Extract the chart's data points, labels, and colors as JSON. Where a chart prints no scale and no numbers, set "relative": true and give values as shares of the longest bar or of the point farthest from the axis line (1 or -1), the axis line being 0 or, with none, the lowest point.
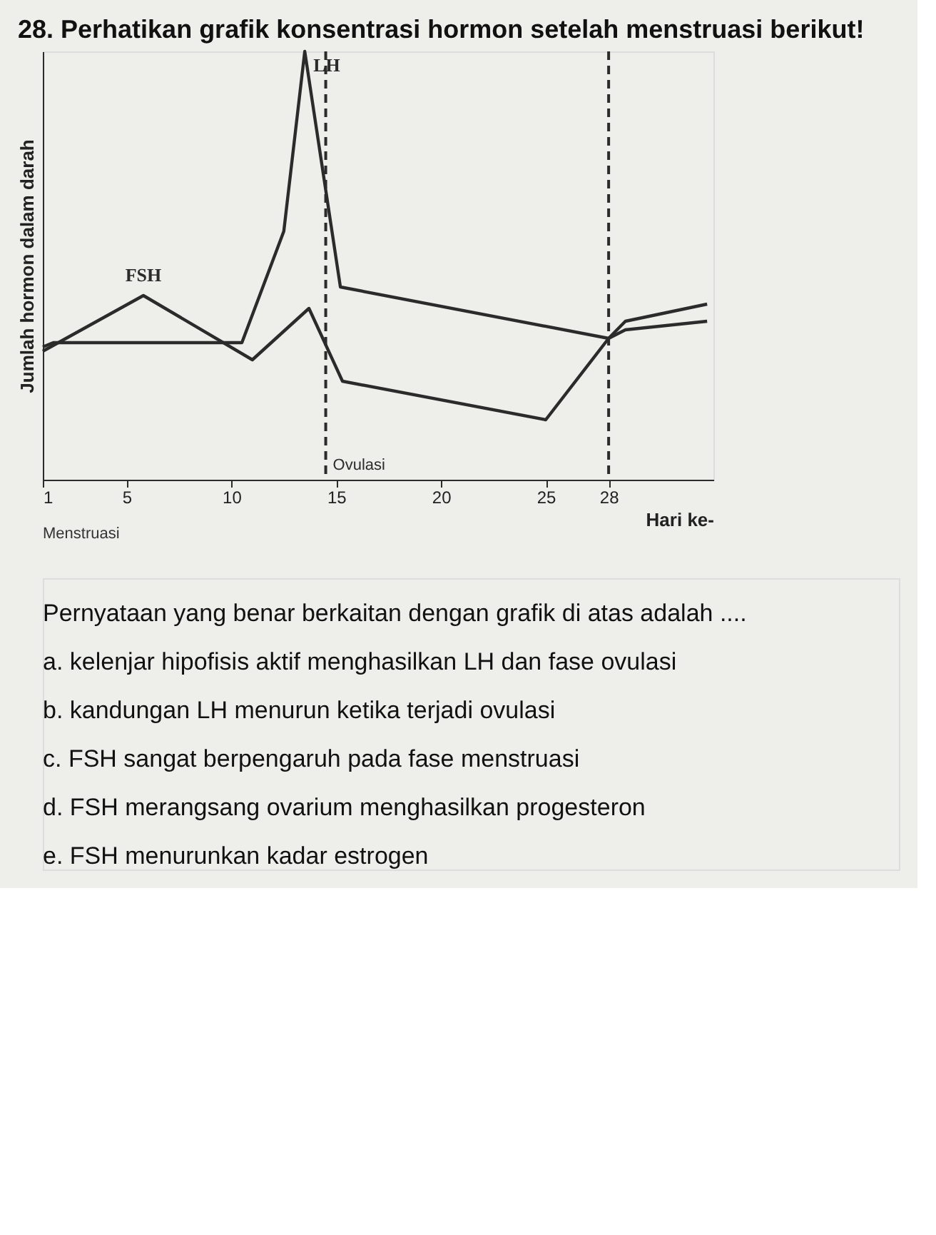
{
  "chart_data": {
    "type": "line",
    "title": "28. Perhatikan grafik konsentrasi hormon setelah menstruasi berikut!",
    "subtitle": "Pernyataan yang benar berkaitan dengan grafik di atas adalah ....",
    "xlabel": "Hari ke-",
    "ylabel": "Jumlah hormon dalam darah",
    "relative": true,
    "xlim": [
      1,
      33
    ],
    "xticks": [
      1,
      5,
      10,
      15,
      20,
      25,
      28
    ],
    "grid": false,
    "legend": false,
    "marker": "none",
    "line_style": "solid",
    "series": [
      {
        "name": "LH",
        "color": "#2b2b2b",
        "x": [
          1,
          1.5,
          10.5,
          12.5,
          13.5,
          15.2,
          28,
          28.8,
          32.7
        ],
        "values": [
          0.31,
          0.32,
          0.32,
          0.58,
          1.0,
          0.45,
          0.33,
          0.37,
          0.41
        ]
      },
      {
        "name": "FSH",
        "color": "#2b2b2b",
        "x": [
          1,
          5.8,
          11,
          13.7,
          15.3,
          25,
          28,
          28.8,
          32.7
        ],
        "values": [
          0.3,
          0.43,
          0.28,
          0.4,
          0.23,
          0.14,
          0.33,
          0.35,
          0.37
        ]
      }
    ],
    "ref_lines": [
      {
        "axis": "x",
        "value": 14.5,
        "label": "Ovulasi",
        "line_style": "dashed",
        "color": "#2b2b2b"
      },
      {
        "axis": "x",
        "value": 28,
        "line_style": "dashed",
        "color": "#2b2b2b"
      }
    ],
    "annotations": [
      "Menstruasi",
      "a.   kelenjar hipofisis aktif menghasilkan LH dan fase ovulasi",
      "b.   kandungan LH menurun ketika terjadi ovulasi",
      "c.   FSH sangat berpengaruh pada fase menstruasi",
      "d.   FSH merangsang ovarium menghasilkan progesteron",
      "e.   FSH menurunkan kadar estrogen"
    ]
  }
}
